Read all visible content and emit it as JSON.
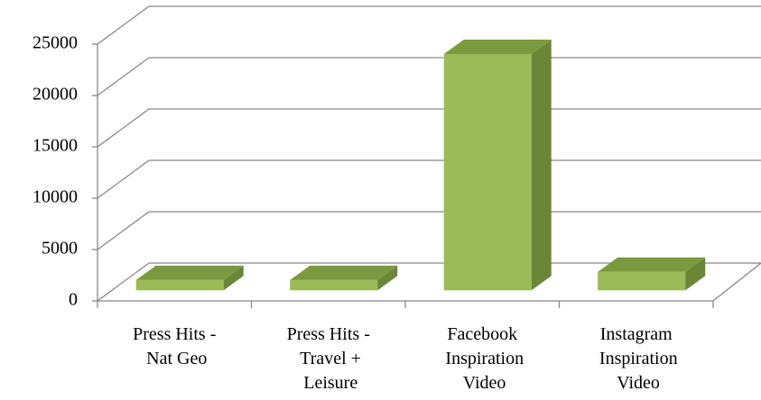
{
  "chart_data": {
    "type": "bar3d",
    "categories": [
      "Press Hits - Nat Geo",
      "Press Hits - Travel + Leisure",
      "Facebook Inspiration Video",
      "Instagram Inspiration Video"
    ],
    "values": [
      1000,
      1000,
      23000,
      1800
    ],
    "color": "#9bbb59",
    "ylim": [
      0,
      25000
    ],
    "yticks": [
      0,
      5000,
      10000,
      15000,
      20000,
      25000
    ],
    "grid": true
  }
}
